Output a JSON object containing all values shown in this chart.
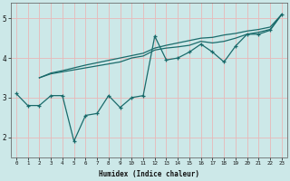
{
  "xlabel": "Humidex (Indice chaleur)",
  "bg_color": "#cce8e8",
  "line_color": "#1a6b6b",
  "grid_color": "#e8b8b8",
  "x_data": [
    0,
    1,
    2,
    3,
    4,
    5,
    6,
    7,
    8,
    9,
    10,
    11,
    12,
    13,
    14,
    15,
    16,
    17,
    18,
    19,
    20,
    21,
    22,
    23
  ],
  "y_jagged": [
    3.1,
    2.8,
    2.8,
    3.05,
    3.05,
    1.9,
    2.55,
    2.6,
    3.05,
    2.75,
    3.0,
    3.05,
    4.55,
    3.95,
    4.0,
    4.15,
    4.35,
    4.15,
    3.9,
    4.3,
    4.6,
    4.6,
    4.7,
    5.1
  ],
  "x_trend": [
    2,
    3,
    4,
    5,
    6,
    7,
    8,
    9,
    10,
    11,
    12,
    13,
    14,
    15,
    16,
    17,
    18,
    19,
    20,
    21,
    22,
    23
  ],
  "y_trend1": [
    3.5,
    3.6,
    3.65,
    3.7,
    3.75,
    3.8,
    3.85,
    3.9,
    4.0,
    4.05,
    4.2,
    4.25,
    4.28,
    4.32,
    4.42,
    4.38,
    4.42,
    4.5,
    4.6,
    4.65,
    4.72,
    5.1
  ],
  "y_trend2": [
    3.5,
    3.62,
    3.68,
    3.75,
    3.82,
    3.88,
    3.94,
    4.0,
    4.06,
    4.12,
    4.25,
    4.32,
    4.38,
    4.44,
    4.5,
    4.52,
    4.58,
    4.62,
    4.68,
    4.72,
    4.78,
    5.1
  ],
  "ylim": [
    1.5,
    5.4
  ],
  "xlim": [
    -0.5,
    23.5
  ],
  "yticks": [
    2,
    3,
    4,
    5
  ],
  "xticks": [
    0,
    1,
    2,
    3,
    4,
    5,
    6,
    7,
    8,
    9,
    10,
    11,
    12,
    13,
    14,
    15,
    16,
    17,
    18,
    19,
    20,
    21,
    22,
    23
  ]
}
